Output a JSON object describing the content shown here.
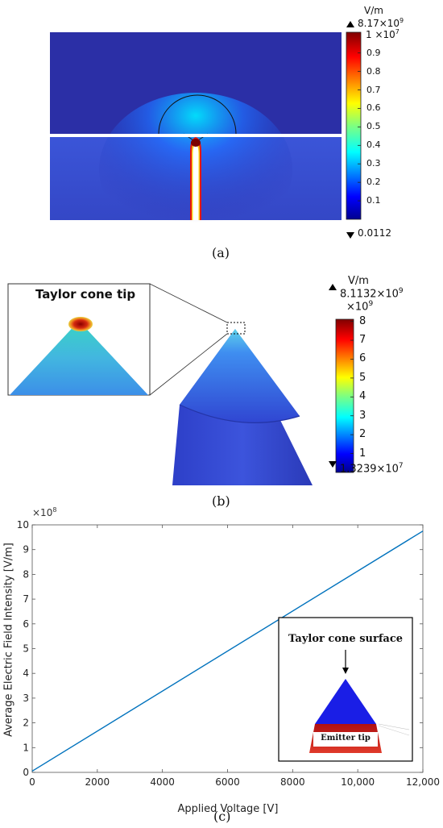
{
  "panel_a": {
    "label": "(a)",
    "colorbar": {
      "unit": "V/m",
      "max_text": "8.17×10",
      "max_exp": "9",
      "scale_text": "1  ×10",
      "scale_exp": "7",
      "ticks": [
        "0.9",
        "0.8",
        "0.7",
        "0.6",
        "0.5",
        "0.4",
        "0.3",
        "0.2",
        "0.1"
      ],
      "min_text": "0.0112"
    }
  },
  "panel_b": {
    "label": "(b)",
    "inset_title": "Taylor cone tip",
    "colorbar": {
      "unit": "V/m",
      "max_text": "8.1132×10",
      "max_exp": "9",
      "scale_text": "×10",
      "scale_exp": "9",
      "ticks": [
        "8",
        "7",
        "6",
        "5",
        "4",
        "3",
        "2",
        "1"
      ],
      "min_text": "1.3239×10",
      "min_exp": "7"
    }
  },
  "panel_c": {
    "label": "(c)",
    "inset": {
      "title": "Taylor cone surface",
      "tip_label": "Emitter tip"
    }
  },
  "chart_data": {
    "type": "line",
    "title": "",
    "xlabel": "Applied Voltage [V]",
    "ylabel": "Average Electric Field Intensity [V/m]",
    "y_multiplier": "×10",
    "y_multiplier_exp": "8",
    "xlim": [
      0,
      12000
    ],
    "ylim": [
      0,
      10
    ],
    "x_ticks": [
      "0",
      "2000",
      "4000",
      "6000",
      "8000",
      "10,000",
      "12,000"
    ],
    "y_ticks": [
      "0",
      "1",
      "2",
      "3",
      "4",
      "5",
      "6",
      "7",
      "8",
      "9",
      "10"
    ],
    "series": [
      {
        "x": [
          0,
          12000
        ],
        "y": [
          0.05,
          9.75
        ],
        "color": "#0072BD"
      }
    ],
    "grid": false
  }
}
